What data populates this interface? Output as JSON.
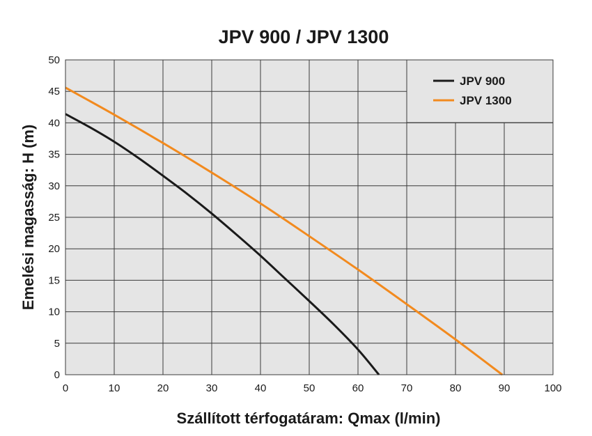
{
  "chart_data": {
    "type": "line",
    "title": "JPV 900 / JPV 1300",
    "xlabel": "Szállított térfogatáram: Qmax (l/min)",
    "ylabel": "Emelési magasság: H (m)",
    "xlim": [
      0,
      100
    ],
    "ylim": [
      0,
      50
    ],
    "xticks": [
      0,
      10,
      20,
      30,
      40,
      50,
      60,
      70,
      80,
      90,
      100
    ],
    "yticks": [
      0,
      5,
      10,
      15,
      20,
      25,
      30,
      35,
      40,
      45,
      50
    ],
    "grid": true,
    "legend_position": "top-right",
    "series": [
      {
        "name": "JPV 900",
        "color": "#1a1a1a",
        "x": [
          0,
          5,
          10,
          15,
          20,
          25,
          30,
          35,
          40,
          45,
          50,
          55,
          60,
          64.3
        ],
        "y": [
          41.4,
          39.3,
          37.0,
          34.4,
          31.6,
          28.7,
          25.6,
          22.3,
          18.9,
          15.3,
          11.7,
          8.0,
          4.0,
          0
        ]
      },
      {
        "name": "JPV 1300",
        "color": "#f28a1e",
        "x": [
          0,
          10,
          20,
          30,
          40,
          50,
          60,
          70,
          80,
          89.6
        ],
        "y": [
          45.6,
          41.3,
          36.8,
          32.1,
          27.2,
          22.0,
          16.7,
          11.2,
          5.6,
          0
        ]
      }
    ]
  }
}
